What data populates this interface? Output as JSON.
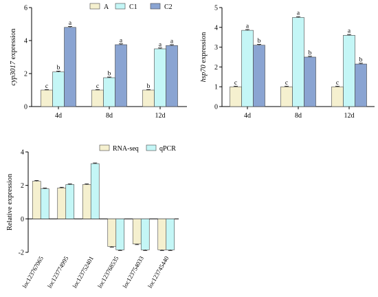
{
  "colors": {
    "A": "#f5f0cf",
    "C1": "#c4f6f6",
    "C2": "#8aa4d2",
    "RNA-seq": "#f5f0cf",
    "qPCR": "#c4f6f6"
  },
  "chart_data": [
    {
      "type": "bar",
      "ylabel_italic": "cyp3017",
      "ylabel_rest": " expression",
      "categories": [
        "4d",
        "8d",
        "12d"
      ],
      "ylim": [
        0,
        6
      ],
      "yticks": [
        "0",
        "2",
        "4",
        "6"
      ],
      "legend": [
        "A",
        "C1",
        "C2"
      ],
      "series": [
        {
          "name": "A",
          "values": [
            1.0,
            1.0,
            1.0
          ],
          "errors": [
            0.03,
            0.03,
            0.03
          ],
          "letters": [
            "c",
            "c",
            "b"
          ]
        },
        {
          "name": "C1",
          "values": [
            2.1,
            1.75,
            3.5
          ],
          "errors": [
            0.05,
            0.04,
            0.05
          ],
          "letters": [
            "b",
            "b",
            "a"
          ]
        },
        {
          "name": "C2",
          "values": [
            4.8,
            3.75,
            3.7
          ],
          "errors": [
            0.05,
            0.05,
            0.05
          ],
          "letters": [
            "a",
            "a",
            "a"
          ]
        }
      ]
    },
    {
      "type": "bar",
      "ylabel_italic": "hsp70",
      "ylabel_rest": " expression",
      "categories": [
        "4d",
        "8d",
        "12d"
      ],
      "ylim": [
        0,
        5
      ],
      "yticks": [
        "0",
        "1",
        "2",
        "3",
        "4",
        "5"
      ],
      "series": [
        {
          "name": "A",
          "values": [
            1.0,
            1.0,
            1.0
          ],
          "errors": [
            0.03,
            0.03,
            0.03
          ],
          "letters": [
            "c",
            "c",
            "c"
          ]
        },
        {
          "name": "C1",
          "values": [
            3.85,
            4.5,
            3.6
          ],
          "errors": [
            0.04,
            0.04,
            0.04
          ],
          "letters": [
            "a",
            "a",
            "a"
          ]
        },
        {
          "name": "C2",
          "values": [
            3.1,
            2.5,
            2.15
          ],
          "errors": [
            0.04,
            0.04,
            0.04
          ],
          "letters": [
            "b",
            "b",
            "b"
          ]
        }
      ]
    },
    {
      "type": "bar",
      "ylabel": "Relative expression",
      "categories": [
        "loc123767065",
        "loc123774995",
        "loc123752401",
        "loc123768535",
        "loc123754033",
        "loc123745440"
      ],
      "ylim": [
        -2,
        4
      ],
      "yticks": [
        "-2",
        "0",
        "2",
        "4"
      ],
      "legend": [
        "RNA-seq",
        "qPCR"
      ],
      "series": [
        {
          "name": "RNA-seq",
          "values": [
            2.25,
            1.85,
            2.05,
            -1.65,
            -1.5,
            -1.85
          ],
          "errors": [
            0.04,
            0.04,
            0.04,
            0.04,
            0.04,
            0.04
          ]
        },
        {
          "name": "qPCR",
          "values": [
            1.8,
            2.05,
            3.3,
            -1.85,
            -1.85,
            -1.85
          ],
          "errors": [
            0.04,
            0.04,
            0.04,
            0.04,
            0.04,
            0.04
          ]
        }
      ]
    }
  ]
}
